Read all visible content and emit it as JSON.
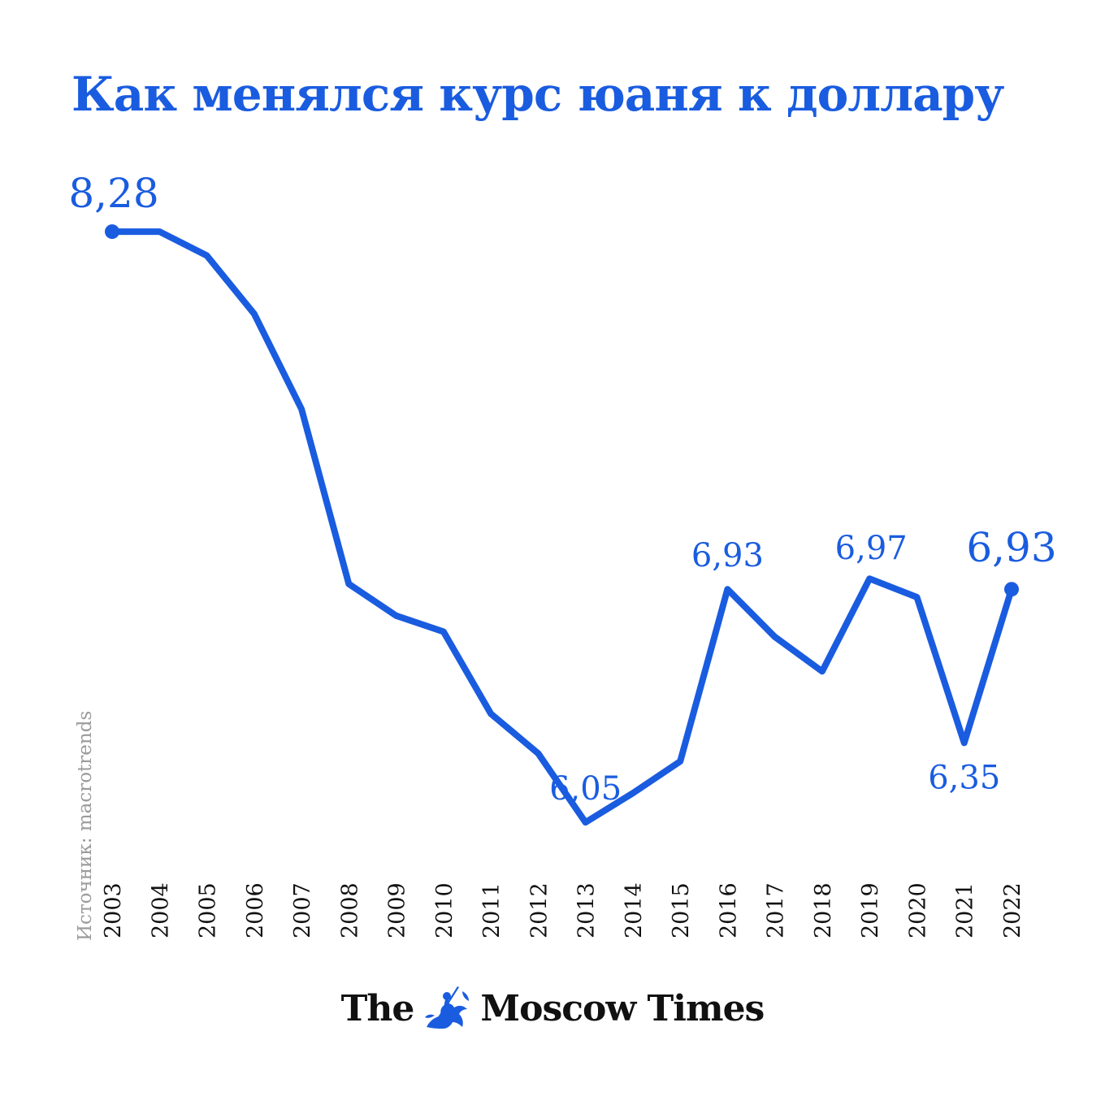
{
  "colors": {
    "accent": "#1a5ce0",
    "text": "#111111",
    "muted": "#9b9b9b"
  },
  "source": "Источник: macrotrends",
  "brand": {
    "left": "The",
    "right": "Moscow Times",
    "emblem": "st-george-emblem-icon"
  },
  "chart_data": {
    "type": "line",
    "title": "Как менялся курс юаня к доллару",
    "xlabel": "",
    "ylabel": "",
    "ylim": [
      5.9,
      8.4
    ],
    "grid": false,
    "x": [
      "2003",
      "2004",
      "2005",
      "2006",
      "2007",
      "2008",
      "2009",
      "2010",
      "2011",
      "2012",
      "2013",
      "2014",
      "2015",
      "2016",
      "2017",
      "2018",
      "2019",
      "2020",
      "2021",
      "2022"
    ],
    "series": [
      {
        "values": [
          8.28,
          8.28,
          8.19,
          7.97,
          7.61,
          6.95,
          6.83,
          6.77,
          6.46,
          6.31,
          6.05,
          6.16,
          6.28,
          6.93,
          6.75,
          6.62,
          6.97,
          6.9,
          6.35,
          6.93
        ]
      }
    ],
    "labels": [
      {
        "index": 0,
        "text": "8,28",
        "pos": "above-right",
        "big": true
      },
      {
        "index": 10,
        "text": "6,05",
        "pos": "above",
        "big": false
      },
      {
        "index": 13,
        "text": "6,93",
        "pos": "above",
        "big": false
      },
      {
        "index": 16,
        "text": "6,97",
        "pos": "above-right",
        "big": false
      },
      {
        "index": 18,
        "text": "6,35",
        "pos": "below",
        "big": false
      },
      {
        "index": 19,
        "text": "6,93",
        "pos": "above",
        "big": true
      }
    ],
    "end_markers": [
      0,
      19
    ]
  }
}
